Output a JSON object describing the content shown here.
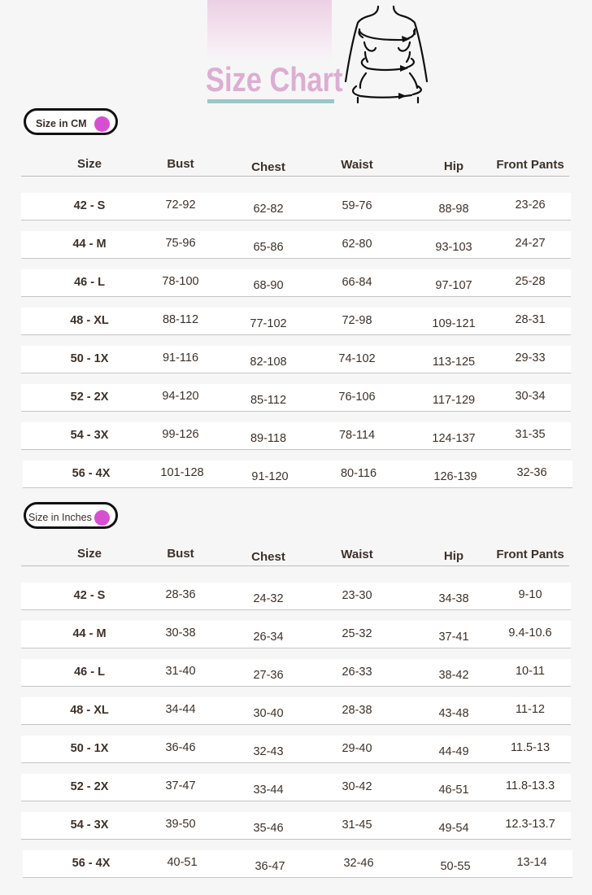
{
  "header": {
    "title": "Size Chart"
  },
  "columns": [
    "Size",
    "Bust",
    "Chest",
    "Waist",
    "Hip",
    "Front Pants"
  ],
  "colors": {
    "title": "#dcaed2",
    "underline": "#9cc6c9",
    "pill_dot": "#d64fd2"
  },
  "tables": [
    {
      "label": "Size in CM",
      "rows": [
        [
          "42 - S",
          "72-92",
          "62-82",
          "59-76",
          "88-98",
          "23-26"
        ],
        [
          "44 - M",
          "75-96",
          "65-86",
          "62-80",
          "93-103",
          "24-27"
        ],
        [
          "46 - L",
          "78-100",
          "68-90",
          "66-84",
          "97-107",
          "25-28"
        ],
        [
          "48 - XL",
          "88-112",
          "77-102",
          "72-98",
          "109-121",
          "28-31"
        ],
        [
          "50 - 1X",
          "91-116",
          "82-108",
          "74-102",
          "113-125",
          "29-33"
        ],
        [
          "52 - 2X",
          "94-120",
          "85-112",
          "76-106",
          "117-129",
          "30-34"
        ],
        [
          "54 - 3X",
          "99-126",
          "89-118",
          "78-114",
          "124-137",
          "31-35"
        ],
        [
          "56 - 4X",
          "101-128",
          "91-120",
          "80-116",
          "126-139",
          "32-36"
        ]
      ]
    },
    {
      "label": "Size in Inches",
      "rows": [
        [
          "42 - S",
          "28-36",
          "24-32",
          "23-30",
          "34-38",
          "9-10"
        ],
        [
          "44 - M",
          "30-38",
          "26-34",
          "25-32",
          "37-41",
          "9.4-10.6"
        ],
        [
          "46 - L",
          "31-40",
          "27-36",
          "26-33",
          "38-42",
          "10-11"
        ],
        [
          "48 - XL",
          "34-44",
          "30-40",
          "28-38",
          "43-48",
          "11-12"
        ],
        [
          "50 - 1X",
          "36-46",
          "32-43",
          "29-40",
          "44-49",
          "11.5-13"
        ],
        [
          "52 - 2X",
          "37-47",
          "33-44",
          "30-42",
          "46-51",
          "11.8-13.3"
        ],
        [
          "54 - 3X",
          "39-50",
          "35-46",
          "31-45",
          "49-54",
          "12.3-13.7"
        ],
        [
          "56 - 4X",
          "40-51",
          "36-47",
          "32-46",
          "50-55",
          "13-14"
        ]
      ]
    }
  ]
}
